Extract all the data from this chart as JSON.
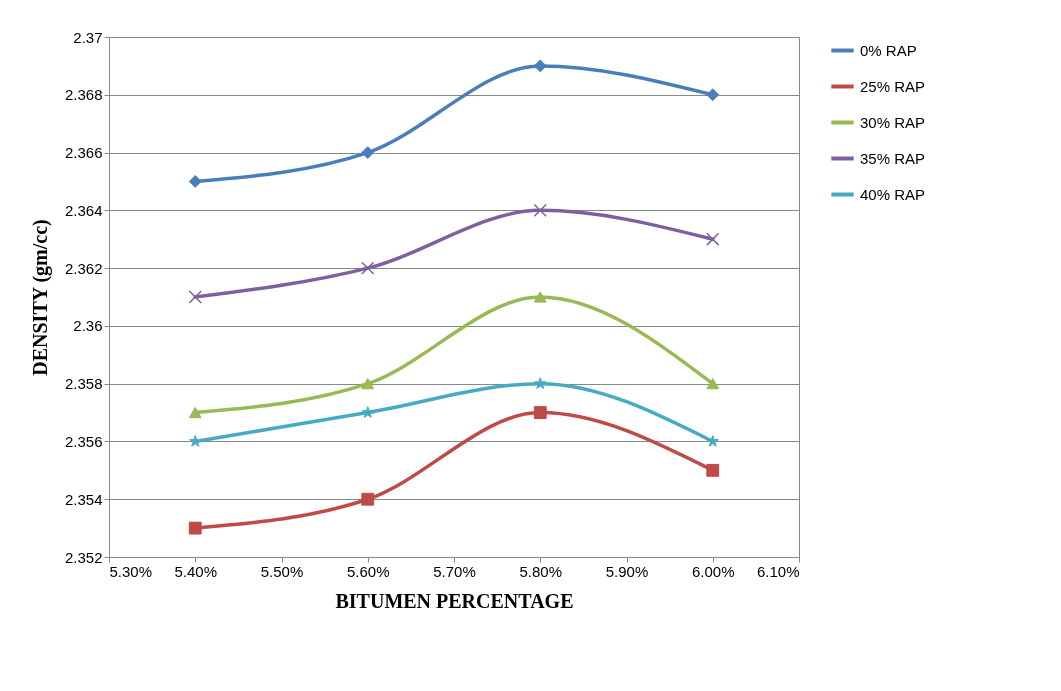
{
  "chart_data": {
    "type": "line",
    "xlabel": "BITUMEN PERCENTAGE",
    "ylabel": "DENSITY (gm/cc)",
    "x": [
      5.4,
      5.6,
      5.8,
      6.0
    ],
    "series": [
      {
        "name": "0% RAP",
        "color": "#4a7ebb",
        "marker": "diamond",
        "values": [
          2.365,
          2.366,
          2.369,
          2.368
        ]
      },
      {
        "name": "25% RAP",
        "color": "#be4b48",
        "marker": "square",
        "values": [
          2.353,
          2.354,
          2.357,
          2.355
        ]
      },
      {
        "name": "30% RAP",
        "color": "#98b954",
        "marker": "triangle",
        "values": [
          2.357,
          2.358,
          2.361,
          2.358
        ]
      },
      {
        "name": "35% RAP",
        "color": "#7d60a0",
        "marker": "cross",
        "values": [
          2.361,
          2.362,
          2.364,
          2.363
        ]
      },
      {
        "name": "40% RAP",
        "color": "#46aac5",
        "marker": "star",
        "values": [
          2.356,
          2.357,
          2.358,
          2.356
        ]
      }
    ],
    "xlim": [
      5.3,
      6.1
    ],
    "xticks": [
      {
        "value": 5.3,
        "label": "5.30%"
      },
      {
        "value": 5.4,
        "label": "5.40%"
      },
      {
        "value": 5.5,
        "label": "5.50%"
      },
      {
        "value": 5.6,
        "label": "5.60%"
      },
      {
        "value": 5.7,
        "label": "5.70%"
      },
      {
        "value": 5.8,
        "label": "5.80%"
      },
      {
        "value": 5.9,
        "label": "5.90%"
      },
      {
        "value": 6.0,
        "label": "6.00%"
      },
      {
        "value": 6.1,
        "label": "6.10%"
      }
    ],
    "ylim": [
      2.352,
      2.37
    ],
    "yticks": [
      2.352,
      2.354,
      2.356,
      2.358,
      {
        "value": 2.36,
        "label": "2.36"
      },
      2.362,
      2.364,
      2.366,
      2.368,
      {
        "value": 2.37,
        "label": "2.37"
      }
    ],
    "grid": "y",
    "legend": "right",
    "line_style": "solid"
  }
}
